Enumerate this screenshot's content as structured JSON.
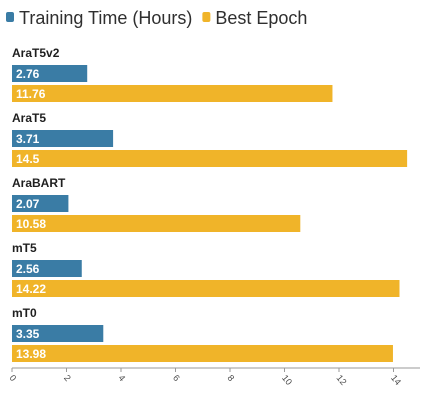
{
  "chart_data": {
    "type": "bar",
    "orientation": "horizontal",
    "categories": [
      "AraT5v2",
      "AraT5",
      "AraBART",
      "mT5",
      "mT0"
    ],
    "series": [
      {
        "name": "Training Time (Hours)",
        "color": "#3a7ca5",
        "values": [
          2.76,
          3.71,
          2.07,
          2.56,
          3.35
        ],
        "labels": [
          "2.76",
          "3.71",
          "2.07",
          "2.56",
          "3.35"
        ]
      },
      {
        "name": "Best Epoch",
        "color": "#f0b429",
        "values": [
          11.76,
          14.5,
          10.58,
          14.22,
          13.98
        ],
        "labels": [
          "11.76",
          "14.5",
          "10.58",
          "14.22",
          "13.98"
        ]
      }
    ],
    "xlim": [
      0,
      15
    ],
    "ticks": [
      0,
      2,
      4,
      6,
      8,
      10,
      12,
      14
    ],
    "tick_labels": [
      "0",
      "2",
      "4",
      "6",
      "8",
      "10",
      "12",
      "14"
    ],
    "legend_position": "top-left",
    "grid": false,
    "title": "",
    "xlabel": "",
    "ylabel": ""
  }
}
